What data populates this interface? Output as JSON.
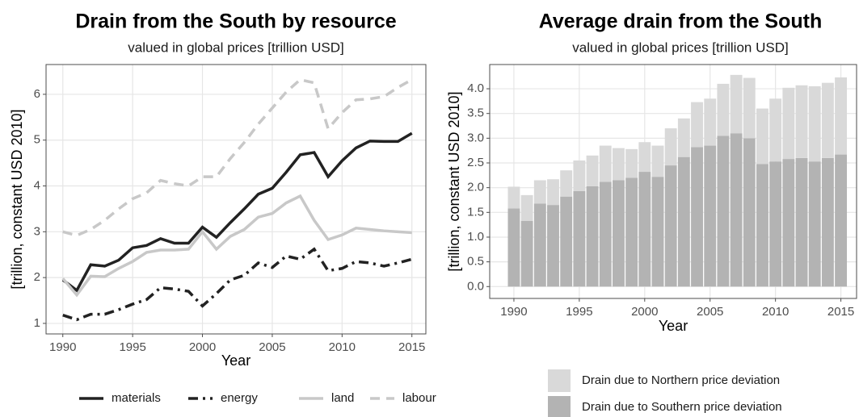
{
  "chart_data": [
    {
      "type": "line",
      "title": "Drain from the South by resource",
      "subtitle": "valued in global prices [trillion USD]",
      "x_label": "Year",
      "y_label": "[trillion, constant USD 2010]",
      "x": [
        1990,
        1991,
        1992,
        1993,
        1994,
        1995,
        1996,
        1997,
        1998,
        1999,
        2000,
        2001,
        2002,
        2003,
        2004,
        2005,
        2006,
        2007,
        2008,
        2009,
        2010,
        2011,
        2012,
        2013,
        2014,
        2015
      ],
      "series": [
        {
          "name": "materials",
          "color": "#222222",
          "linestyle": "solid",
          "values": [
            1.95,
            1.72,
            2.28,
            2.25,
            2.38,
            2.65,
            2.7,
            2.85,
            2.75,
            2.75,
            3.1,
            2.88,
            3.2,
            3.5,
            3.82,
            3.95,
            4.3,
            4.68,
            4.73,
            4.2,
            4.55,
            4.83,
            4.98,
            4.97,
            4.97,
            5.15
          ]
        },
        {
          "name": "energy",
          "color": "#222222",
          "linestyle": "dashdot",
          "values": [
            1.18,
            1.08,
            1.2,
            1.2,
            1.3,
            1.42,
            1.52,
            1.78,
            1.75,
            1.7,
            1.38,
            1.65,
            1.95,
            2.05,
            2.32,
            2.22,
            2.47,
            2.4,
            2.62,
            2.15,
            2.2,
            2.35,
            2.32,
            2.25,
            2.32,
            2.4
          ]
        },
        {
          "name": "land",
          "color": "#c8c8c8",
          "linestyle": "solid",
          "values": [
            1.98,
            1.62,
            2.03,
            2.02,
            2.2,
            2.35,
            2.55,
            2.6,
            2.6,
            2.62,
            3.0,
            2.62,
            2.9,
            3.05,
            3.32,
            3.4,
            3.63,
            3.78,
            3.25,
            2.83,
            2.93,
            3.08,
            3.05,
            3.02,
            3.0,
            2.98
          ]
        },
        {
          "name": "labour",
          "color": "#c8c8c8",
          "linestyle": "dashed",
          "values": [
            3.0,
            2.92,
            3.05,
            3.25,
            3.5,
            3.72,
            3.85,
            4.12,
            4.05,
            4.0,
            4.2,
            4.2,
            4.6,
            4.95,
            5.35,
            5.7,
            6.05,
            6.32,
            6.25,
            5.25,
            5.6,
            5.88,
            5.9,
            5.95,
            6.15,
            6.32
          ]
        }
      ],
      "xlim": [
        1988.8,
        2016
      ],
      "ylim": [
        0.77,
        6.65
      ],
      "xticks": [
        1990,
        1995,
        2000,
        2005,
        2010,
        2015
      ],
      "yticks": [
        1,
        2,
        3,
        4,
        5,
        6
      ],
      "grid": true,
      "legend": "bottom"
    },
    {
      "type": "stacked_bar",
      "title": "Average drain from the South",
      "subtitle": "valued in global prices [trillion USD]",
      "x_label": "Year",
      "y_label": "[trillion, constant USD 2010]",
      "x": [
        1990,
        1991,
        1992,
        1993,
        1994,
        1995,
        1996,
        1997,
        1998,
        1999,
        2000,
        2001,
        2002,
        2003,
        2004,
        2005,
        2006,
        2007,
        2008,
        2009,
        2010,
        2011,
        2012,
        2013,
        2014,
        2015
      ],
      "series": [
        {
          "name": "Drain due to Southern price deviation",
          "color": "#b3b3b3",
          "values": [
            1.58,
            1.33,
            1.68,
            1.65,
            1.82,
            1.93,
            2.03,
            2.12,
            2.15,
            2.2,
            2.32,
            2.22,
            2.45,
            2.62,
            2.82,
            2.85,
            3.05,
            3.1,
            3.0,
            2.48,
            2.53,
            2.58,
            2.6,
            2.53,
            2.6,
            2.67
          ]
        },
        {
          "name": "Drain due to Northern price deviation",
          "color": "#d9d9d9",
          "values": [
            0.44,
            0.52,
            0.47,
            0.52,
            0.53,
            0.62,
            0.62,
            0.73,
            0.65,
            0.58,
            0.6,
            0.63,
            0.75,
            0.78,
            0.91,
            0.95,
            1.05,
            1.18,
            1.22,
            1.12,
            1.27,
            1.44,
            1.47,
            1.52,
            1.52,
            1.56
          ]
        }
      ],
      "xlim": [
        1988.15,
        2016.2
      ],
      "ylim": [
        -0.24,
        4.49
      ],
      "xticks": [
        1990,
        1995,
        2000,
        2005,
        2010,
        2015
      ],
      "yticks": [
        {
          "value": 0,
          "label": "0.0"
        },
        0.5,
        {
          "value": 1,
          "label": "1.0"
        },
        1.5,
        {
          "value": 2,
          "label": "2.0"
        },
        2.5,
        {
          "value": 3,
          "label": "3.0"
        },
        3.5,
        {
          "value": 4,
          "label": "4.0"
        }
      ],
      "grid": true,
      "legend": "bottom"
    }
  ]
}
